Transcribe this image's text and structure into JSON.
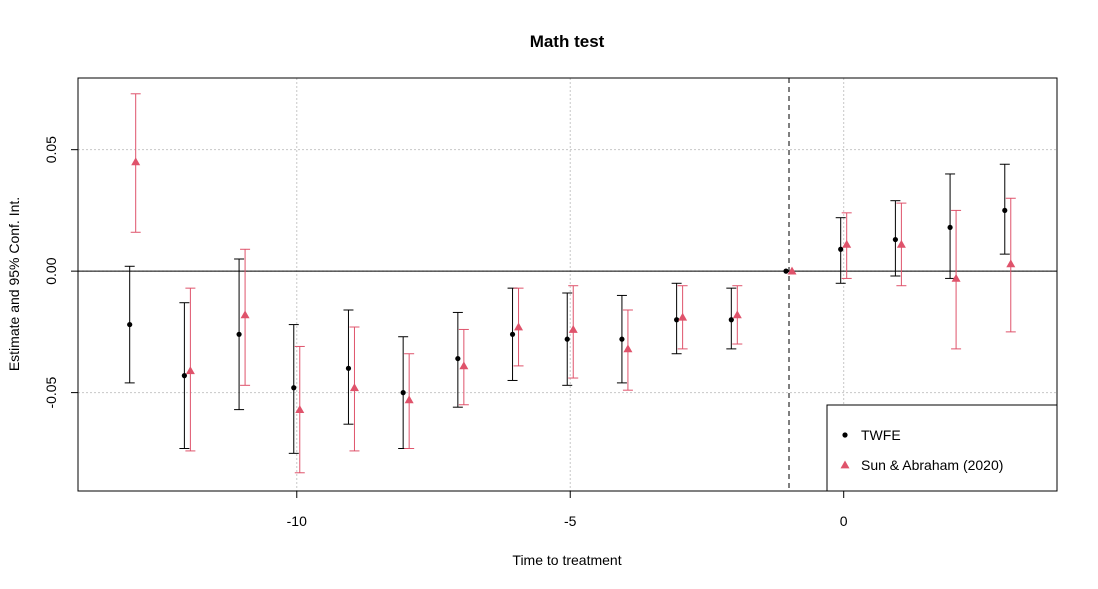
{
  "chart_data": {
    "type": "scatter",
    "title": "Math test",
    "xlabel": "Time to treatment",
    "ylabel": "Estimate and 95% Conf. Int.",
    "xlim": [
      -14.0,
      3.9
    ],
    "ylim": [
      -0.0905,
      0.0795
    ],
    "x_ticks": [
      -10,
      -5,
      0
    ],
    "x_tick_labels": [
      "-10",
      "-5",
      "0"
    ],
    "y_ticks": [
      -0.05,
      0.0,
      0.05
    ],
    "y_tick_labels": [
      "-0.05",
      "0.00",
      "0.05"
    ],
    "grid": true,
    "reference_vline": -1,
    "reference_hline": 0,
    "legend_position": "bottom-right",
    "series": [
      {
        "name": "TWFE",
        "color": "#000000",
        "marker": "circle",
        "x": [
          -13,
          -12,
          -11,
          -10,
          -9,
          -8,
          -7,
          -6,
          -5,
          -4,
          -3,
          -2,
          -1,
          0,
          1,
          2,
          3
        ],
        "y": [
          -0.022,
          -0.043,
          -0.026,
          -0.048,
          -0.04,
          -0.05,
          -0.036,
          -0.026,
          -0.028,
          -0.028,
          -0.02,
          -0.02,
          0.0,
          0.009,
          0.013,
          0.018,
          0.025
        ],
        "ci_low": [
          -0.046,
          -0.073,
          -0.057,
          -0.075,
          -0.063,
          -0.073,
          -0.056,
          -0.045,
          -0.047,
          -0.046,
          -0.034,
          -0.032,
          null,
          -0.005,
          -0.002,
          -0.003,
          0.007
        ],
        "ci_high": [
          0.002,
          -0.013,
          0.005,
          -0.022,
          -0.016,
          -0.027,
          -0.017,
          -0.007,
          -0.009,
          -0.01,
          -0.005,
          -0.007,
          null,
          0.022,
          0.029,
          0.04,
          0.044
        ]
      },
      {
        "name": "Sun & Abraham (2020)",
        "color": "#DF536B",
        "marker": "triangle",
        "x": [
          -13,
          -12,
          -11,
          -10,
          -9,
          -8,
          -7,
          -6,
          -5,
          -4,
          -3,
          -2,
          -1,
          0,
          1,
          2,
          3
        ],
        "y": [
          0.045,
          -0.041,
          -0.018,
          -0.057,
          -0.048,
          -0.053,
          -0.039,
          -0.023,
          -0.024,
          -0.032,
          -0.019,
          -0.018,
          0.0,
          0.011,
          0.011,
          -0.003,
          0.003
        ],
        "ci_low": [
          0.016,
          -0.074,
          -0.047,
          -0.083,
          -0.074,
          -0.073,
          -0.055,
          -0.039,
          -0.044,
          -0.049,
          -0.032,
          -0.03,
          null,
          -0.003,
          -0.006,
          -0.032,
          -0.025
        ],
        "ci_high": [
          0.073,
          -0.007,
          0.009,
          -0.031,
          -0.023,
          -0.034,
          -0.024,
          -0.007,
          -0.006,
          -0.016,
          -0.006,
          -0.006,
          null,
          0.024,
          0.028,
          0.025,
          0.03
        ]
      }
    ]
  }
}
